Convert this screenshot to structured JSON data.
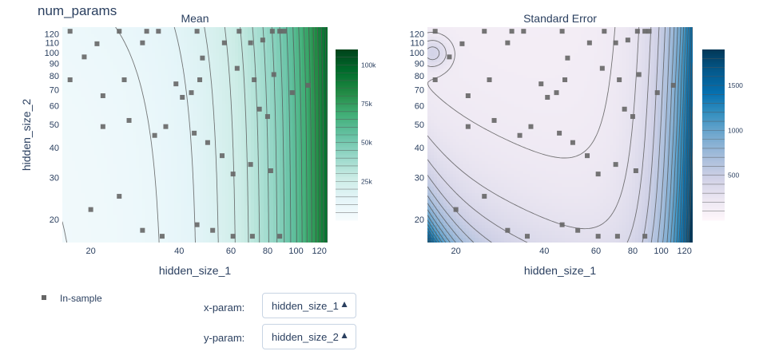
{
  "page_title": "num_params",
  "chart_data": [
    {
      "type": "contour",
      "title": "Mean",
      "xlabel": "hidden_size_1",
      "ylabel": "hidden_size_2",
      "xscale": "log",
      "yscale": "log",
      "xlim": [
        16,
        128
      ],
      "ylim": [
        16,
        128
      ],
      "xticks": [
        20,
        40,
        60,
        80,
        100,
        120
      ],
      "yticks": [
        20,
        30,
        40,
        50,
        60,
        70,
        80,
        90,
        100,
        110,
        120
      ],
      "colorscale": [
        "#f7fcfd",
        "#e5f5f9",
        "#ccece6",
        "#99d8c9",
        "#66c2a4",
        "#41ae76",
        "#238b45",
        "#006d2c",
        "#00441b"
      ],
      "colorbar": {
        "range": [
          0,
          110000
        ],
        "ticks": [
          25000,
          50000,
          75000,
          100000
        ],
        "tick_labels": [
          "25k",
          "50k",
          "75k",
          "100k"
        ]
      },
      "contour_levels": [
        5000,
        10000,
        15000,
        20000,
        25000,
        30000,
        35000,
        40000,
        45000,
        50000,
        55000,
        60000,
        65000,
        70000,
        75000,
        80000,
        85000,
        90000,
        95000,
        100000,
        105000
      ]
    },
    {
      "type": "contour",
      "title": "Standard Error",
      "xlabel": "hidden_size_1",
      "xscale": "log",
      "yscale": "log",
      "xlim": [
        16,
        128
      ],
      "ylim": [
        16,
        128
      ],
      "xticks": [
        20,
        40,
        60,
        80,
        100,
        120
      ],
      "yticks": [
        20,
        30,
        40,
        50,
        60,
        70,
        80,
        90,
        100,
        110,
        120
      ],
      "colorscale": [
        "#fff7fb",
        "#ece7f2",
        "#d0d1e6",
        "#a6bddb",
        "#74a9cf",
        "#3690c0",
        "#0570b0",
        "#045a8d",
        "#023858"
      ],
      "colorbar": {
        "range": [
          0,
          1900
        ],
        "ticks": [
          500,
          1000,
          1500
        ],
        "tick_labels": [
          "500",
          "1000",
          "1500"
        ]
      },
      "contour_levels": [
        100,
        200,
        300,
        400,
        500,
        600,
        700,
        800,
        900,
        1000,
        1100,
        1200,
        1300,
        1400,
        1500,
        1600,
        1700,
        1800
      ]
    }
  ],
  "samples": {
    "name": "In-sample",
    "color": "#666666",
    "points": [
      [
        17,
        123
      ],
      [
        19,
        96
      ],
      [
        21,
        109
      ],
      [
        17,
        77
      ],
      [
        25,
        123
      ],
      [
        30,
        110
      ],
      [
        31,
        123
      ],
      [
        34,
        123
      ],
      [
        46,
        123
      ],
      [
        57,
        110
      ],
      [
        64,
        123
      ],
      [
        70,
        110
      ],
      [
        77,
        113
      ],
      [
        83,
        123
      ],
      [
        88,
        123
      ],
      [
        91,
        123
      ],
      [
        26,
        77
      ],
      [
        22,
        66
      ],
      [
        39,
        74
      ],
      [
        41,
        65
      ],
      [
        44,
        68
      ],
      [
        47,
        77
      ],
      [
        48,
        95
      ],
      [
        63,
        86
      ],
      [
        72,
        77
      ],
      [
        75,
        58
      ],
      [
        80,
        54
      ],
      [
        84,
        81
      ],
      [
        97,
        68
      ],
      [
        110,
        73
      ],
      [
        22,
        49
      ],
      [
        27,
        52
      ],
      [
        33,
        45
      ],
      [
        36,
        49
      ],
      [
        45,
        46
      ],
      [
        50,
        42
      ],
      [
        56,
        37
      ],
      [
        70,
        34
      ],
      [
        82,
        32
      ],
      [
        61,
        31
      ],
      [
        25,
        25
      ],
      [
        20,
        22
      ],
      [
        30,
        18
      ],
      [
        35,
        17
      ],
      [
        46,
        19
      ],
      [
        52,
        18
      ],
      [
        61,
        17
      ],
      [
        71,
        17
      ],
      [
        88,
        17
      ]
    ]
  },
  "controls": {
    "x_label": "x-param:",
    "x_value": "hidden_size_1",
    "y_label": "y-param:",
    "y_value": "hidden_size_2",
    "arrow": "▲"
  }
}
